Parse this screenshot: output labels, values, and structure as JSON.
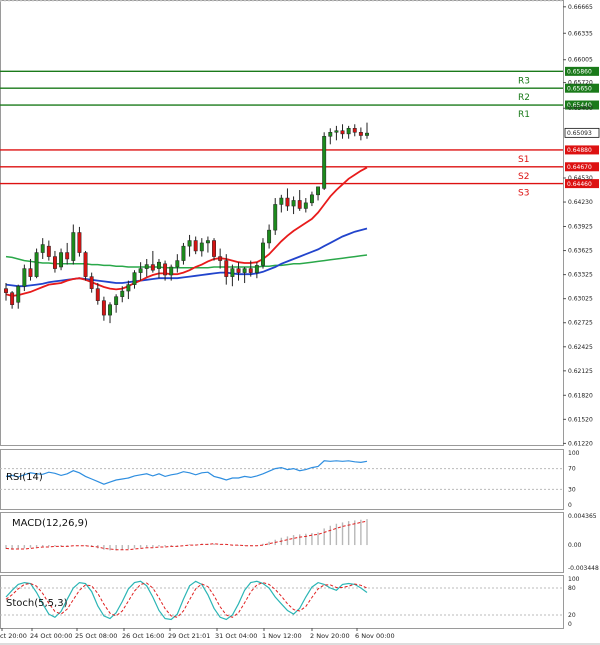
{
  "chart_data": {
    "type": "candlestick",
    "price_ticks": [
      "0.66665",
      "0.66335",
      "0.66005",
      "0.65720",
      "0.65400",
      "0.64530",
      "0.64230",
      "0.63925",
      "0.63625",
      "0.63325",
      "0.63025",
      "0.62725",
      "0.62425",
      "0.62125",
      "0.61820",
      "0.61520",
      "0.61220"
    ],
    "levels": [
      {
        "name": "R3",
        "value": "0.65860",
        "kind": "resistance"
      },
      {
        "name": "R2",
        "value": "0.65650",
        "kind": "resistance"
      },
      {
        "name": "R1",
        "value": "0.65440",
        "kind": "resistance"
      },
      {
        "name": "S1",
        "value": "0.64880",
        "kind": "support"
      },
      {
        "name": "S2",
        "value": "0.64670",
        "kind": "support"
      },
      {
        "name": "S3",
        "value": "0.64460",
        "kind": "support"
      }
    ],
    "current_price": "0.65093",
    "x_labels": [
      "ct 20:00",
      "24 Oct 00:00",
      "25 Oct 08:00",
      "26 Oct 16:00",
      "29 Oct 21:01",
      "31 Oct 04:00",
      "1 Nov 12:00",
      "2 Nov 20:00",
      "6 Nov 00:00"
    ],
    "candles": [
      [
        0.6315,
        0.6322,
        0.63,
        0.631
      ],
      [
        0.631,
        0.6312,
        0.629,
        0.6295
      ],
      [
        0.6298,
        0.632,
        0.629,
        0.6318
      ],
      [
        0.6318,
        0.6345,
        0.6312,
        0.634
      ],
      [
        0.634,
        0.6352,
        0.6325,
        0.633
      ],
      [
        0.633,
        0.6365,
        0.6328,
        0.636
      ],
      [
        0.636,
        0.6378,
        0.6352,
        0.637
      ],
      [
        0.6368,
        0.6375,
        0.635,
        0.6355
      ],
      [
        0.6355,
        0.6362,
        0.6335,
        0.634
      ],
      [
        0.6342,
        0.6365,
        0.6338,
        0.636
      ],
      [
        0.636,
        0.6372,
        0.6345,
        0.6352
      ],
      [
        0.635,
        0.6395,
        0.6345,
        0.6385
      ],
      [
        0.6385,
        0.6392,
        0.6355,
        0.636
      ],
      [
        0.636,
        0.6362,
        0.6325,
        0.633
      ],
      [
        0.633,
        0.6335,
        0.631,
        0.6315
      ],
      [
        0.6315,
        0.6322,
        0.6295,
        0.63
      ],
      [
        0.63,
        0.6305,
        0.6275,
        0.6282
      ],
      [
        0.6282,
        0.6298,
        0.6272,
        0.6295
      ],
      [
        0.6295,
        0.6308,
        0.6285,
        0.6305
      ],
      [
        0.6305,
        0.6318,
        0.6298,
        0.6312
      ],
      [
        0.6312,
        0.6325,
        0.6302,
        0.632
      ],
      [
        0.632,
        0.6338,
        0.6315,
        0.6335
      ],
      [
        0.6335,
        0.6348,
        0.6325,
        0.634
      ],
      [
        0.634,
        0.6352,
        0.633,
        0.6345
      ],
      [
        0.6345,
        0.6362,
        0.6335,
        0.6338
      ],
      [
        0.634,
        0.6352,
        0.6328,
        0.6348
      ],
      [
        0.6346,
        0.635,
        0.6325,
        0.6332
      ],
      [
        0.6332,
        0.6345,
        0.6325,
        0.6342
      ],
      [
        0.6342,
        0.6358,
        0.6335,
        0.635
      ],
      [
        0.635,
        0.6372,
        0.6345,
        0.6368
      ],
      [
        0.6368,
        0.6382,
        0.6355,
        0.6375
      ],
      [
        0.6375,
        0.638,
        0.6358,
        0.6362
      ],
      [
        0.6362,
        0.6378,
        0.6355,
        0.6372
      ],
      [
        0.6372,
        0.638,
        0.636,
        0.6375
      ],
      [
        0.6375,
        0.6378,
        0.635,
        0.6355
      ],
      [
        0.6355,
        0.6365,
        0.634,
        0.635
      ],
      [
        0.635,
        0.6358,
        0.632,
        0.633
      ],
      [
        0.633,
        0.6345,
        0.6318,
        0.634
      ],
      [
        0.634,
        0.6348,
        0.6325,
        0.6335
      ],
      [
        0.6335,
        0.6342,
        0.6322,
        0.634
      ],
      [
        0.634,
        0.635,
        0.633,
        0.6335
      ],
      [
        0.6335,
        0.6348,
        0.6328,
        0.6344
      ],
      [
        0.6344,
        0.6378,
        0.634,
        0.6372
      ],
      [
        0.6372,
        0.6395,
        0.6365,
        0.6388
      ],
      [
        0.6388,
        0.6428,
        0.6382,
        0.642
      ],
      [
        0.642,
        0.6432,
        0.641,
        0.6428
      ],
      [
        0.6428,
        0.644,
        0.6412,
        0.6418
      ],
      [
        0.6418,
        0.643,
        0.6408,
        0.6425
      ],
      [
        0.6425,
        0.6438,
        0.6412,
        0.6415
      ],
      [
        0.6415,
        0.6428,
        0.641,
        0.6422
      ],
      [
        0.6422,
        0.6436,
        0.6418,
        0.6432
      ],
      [
        0.6432,
        0.644,
        0.6425,
        0.6442
      ],
      [
        0.644,
        0.651,
        0.6438,
        0.6505
      ],
      [
        0.6505,
        0.6515,
        0.6495,
        0.651
      ],
      [
        0.651,
        0.6518,
        0.65,
        0.6512
      ],
      [
        0.6512,
        0.652,
        0.6502,
        0.6508
      ],
      [
        0.6508,
        0.6518,
        0.6502,
        0.6515
      ],
      [
        0.6515,
        0.652,
        0.6505,
        0.651
      ],
      [
        0.651,
        0.6516,
        0.65,
        0.6506
      ],
      [
        0.6506,
        0.6522,
        0.6502,
        0.6509
      ]
    ],
    "ma_red": [
      0.6308,
      0.6306,
      0.6307,
      0.6309,
      0.6311,
      0.6314,
      0.6317,
      0.632,
      0.6321,
      0.6322,
      0.6325,
      0.6327,
      0.6328,
      0.6326,
      0.6323,
      0.632,
      0.6317,
      0.6315,
      0.6314,
      0.6315,
      0.6318,
      0.6322,
      0.6325,
      0.6329,
      0.6332,
      0.6334,
      0.6334,
      0.6333,
      0.6333,
      0.6335,
      0.6338,
      0.6342,
      0.6345,
      0.6349,
      0.6352,
      0.6353,
      0.6352,
      0.635,
      0.6348,
      0.6347,
      0.6347,
      0.6348,
      0.6352,
      0.6358,
      0.6366,
      0.6374,
      0.6381,
      0.6387,
      0.6392,
      0.6397,
      0.6402,
      0.641,
      0.642,
      0.643,
      0.6438,
      0.6445,
      0.6452,
      0.6457,
      0.6462,
      0.6466
    ],
    "ma_blue": [
      0.632,
      0.6319,
      0.6318,
      0.6318,
      0.6319,
      0.632,
      0.6321,
      0.6323,
      0.6324,
      0.6325,
      0.6326,
      0.6327,
      0.6328,
      0.6327,
      0.6326,
      0.6325,
      0.6324,
      0.6323,
      0.6322,
      0.6322,
      0.6323,
      0.6324,
      0.6325,
      0.6326,
      0.6327,
      0.6328,
      0.6328,
      0.6328,
      0.6328,
      0.6329,
      0.633,
      0.6331,
      0.6332,
      0.6333,
      0.6334,
      0.6335,
      0.6335,
      0.6334,
      0.6333,
      0.6333,
      0.6333,
      0.6334,
      0.6336,
      0.6339,
      0.6342,
      0.6346,
      0.6349,
      0.6352,
      0.6355,
      0.6358,
      0.6361,
      0.6364,
      0.6368,
      0.6372,
      0.6376,
      0.638,
      0.6383,
      0.6386,
      0.6388,
      0.639
    ],
    "ma_green": [
      0.6355,
      0.6354,
      0.6352,
      0.635,
      0.6349,
      0.6348,
      0.6347,
      0.6347,
      0.6346,
      0.6346,
      0.6346,
      0.6346,
      0.6346,
      0.6346,
      0.6345,
      0.6345,
      0.6344,
      0.6344,
      0.6343,
      0.6343,
      0.6342,
      0.6342,
      0.6342,
      0.6342,
      0.6342,
      0.6342,
      0.6341,
      0.6341,
      0.6341,
      0.6341,
      0.6341,
      0.6341,
      0.6341,
      0.6341,
      0.6342,
      0.6342,
      0.6342,
      0.6342,
      0.6342,
      0.6342,
      0.6342,
      0.6342,
      0.6343,
      0.6343,
      0.6344,
      0.6344,
      0.6345,
      0.6346,
      0.6346,
      0.6347,
      0.6348,
      0.6349,
      0.635,
      0.6351,
      0.6352,
      0.6353,
      0.6354,
      0.6355,
      0.6356,
      0.6357
    ],
    "rsi": {
      "label": "RSI(14)",
      "ticks": [
        "100",
        "70",
        "30",
        "0"
      ],
      "values": [
        55,
        57,
        54,
        58,
        62,
        60,
        59,
        63,
        61,
        57,
        60,
        66,
        62,
        55,
        50,
        45,
        40,
        44,
        48,
        50,
        52,
        56,
        58,
        60,
        56,
        60,
        55,
        58,
        60,
        64,
        62,
        58,
        62,
        63,
        55,
        52,
        48,
        52,
        52,
        55,
        53,
        56,
        60,
        65,
        70,
        72,
        68,
        70,
        66,
        68,
        72,
        74,
        85,
        84,
        85,
        84,
        85,
        83,
        82,
        84
      ]
    },
    "macd": {
      "label": "MACD(12,26,9)",
      "ticks": [
        "0.004365",
        "0.00",
        "-0.003448"
      ],
      "hist": [
        -0.0006,
        -0.0007,
        -0.0006,
        -0.0005,
        -0.0004,
        -0.0003,
        -0.0002,
        -0.0002,
        -0.0002,
        -0.0002,
        -0.0001,
        0.0,
        0.0,
        -0.0001,
        -0.0003,
        -0.0005,
        -0.0007,
        -0.0008,
        -0.0008,
        -0.0007,
        -0.0006,
        -0.0005,
        -0.0004,
        -0.0003,
        -0.0003,
        -0.0002,
        -0.0002,
        -0.0002,
        -0.0001,
        0.0,
        0.0001,
        0.0001,
        0.0002,
        0.0002,
        0.0002,
        0.0001,
        0.0,
        -0.0001,
        -0.0001,
        -0.0001,
        -0.0001,
        0.0,
        0.0002,
        0.0005,
        0.0008,
        0.0011,
        0.0013,
        0.0015,
        0.0016,
        0.0017,
        0.0018,
        0.0019,
        0.0025,
        0.0029,
        0.0032,
        0.0034,
        0.0036,
        0.0037,
        0.0038,
        0.0039
      ],
      "signal": [
        -0.0005,
        -0.0006,
        -0.0006,
        -0.0006,
        -0.0005,
        -0.0004,
        -0.0003,
        -0.0003,
        -0.0002,
        -0.0002,
        -0.0002,
        -0.0001,
        -0.0001,
        -0.0001,
        -0.0002,
        -0.0003,
        -0.0005,
        -0.0006,
        -0.0007,
        -0.0007,
        -0.0007,
        -0.0006,
        -0.0005,
        -0.0004,
        -0.0004,
        -0.0003,
        -0.0003,
        -0.0002,
        -0.0002,
        -0.0001,
        0.0,
        0.0,
        0.0001,
        0.0001,
        0.0002,
        0.0001,
        0.0001,
        0.0,
        0.0,
        -0.0001,
        -0.0001,
        -0.0001,
        0.0,
        0.0002,
        0.0004,
        0.0006,
        0.0008,
        0.001,
        0.0012,
        0.0013,
        0.0015,
        0.0016,
        0.0019,
        0.0022,
        0.0025,
        0.0028,
        0.003,
        0.0032,
        0.0034,
        0.0036
      ]
    },
    "stoch": {
      "label": "Stoch(5,5,3)",
      "ticks": [
        "100",
        "80",
        "20",
        "0"
      ],
      "k": [
        60,
        75,
        88,
        92,
        90,
        70,
        45,
        22,
        15,
        28,
        55,
        80,
        92,
        90,
        72,
        40,
        18,
        12,
        25,
        50,
        78,
        92,
        95,
        85,
        60,
        30,
        12,
        10,
        22,
        55,
        85,
        95,
        88,
        65,
        35,
        15,
        10,
        20,
        45,
        75,
        92,
        95,
        90,
        80,
        60,
        45,
        30,
        22,
        35,
        60,
        82,
        92,
        88,
        80,
        75,
        88,
        90,
        88,
        80,
        70
      ],
      "d": [
        55,
        65,
        78,
        88,
        90,
        84,
        68,
        46,
        28,
        22,
        33,
        54,
        75,
        87,
        85,
        68,
        44,
        24,
        18,
        29,
        51,
        73,
        88,
        91,
        80,
        58,
        34,
        18,
        15,
        29,
        54,
        78,
        89,
        83,
        63,
        38,
        20,
        15,
        25,
        47,
        71,
        87,
        92,
        88,
        77,
        62,
        45,
        32,
        29,
        39,
        59,
        78,
        87,
        87,
        81,
        81,
        84,
        89,
        86,
        80
      ]
    }
  }
}
